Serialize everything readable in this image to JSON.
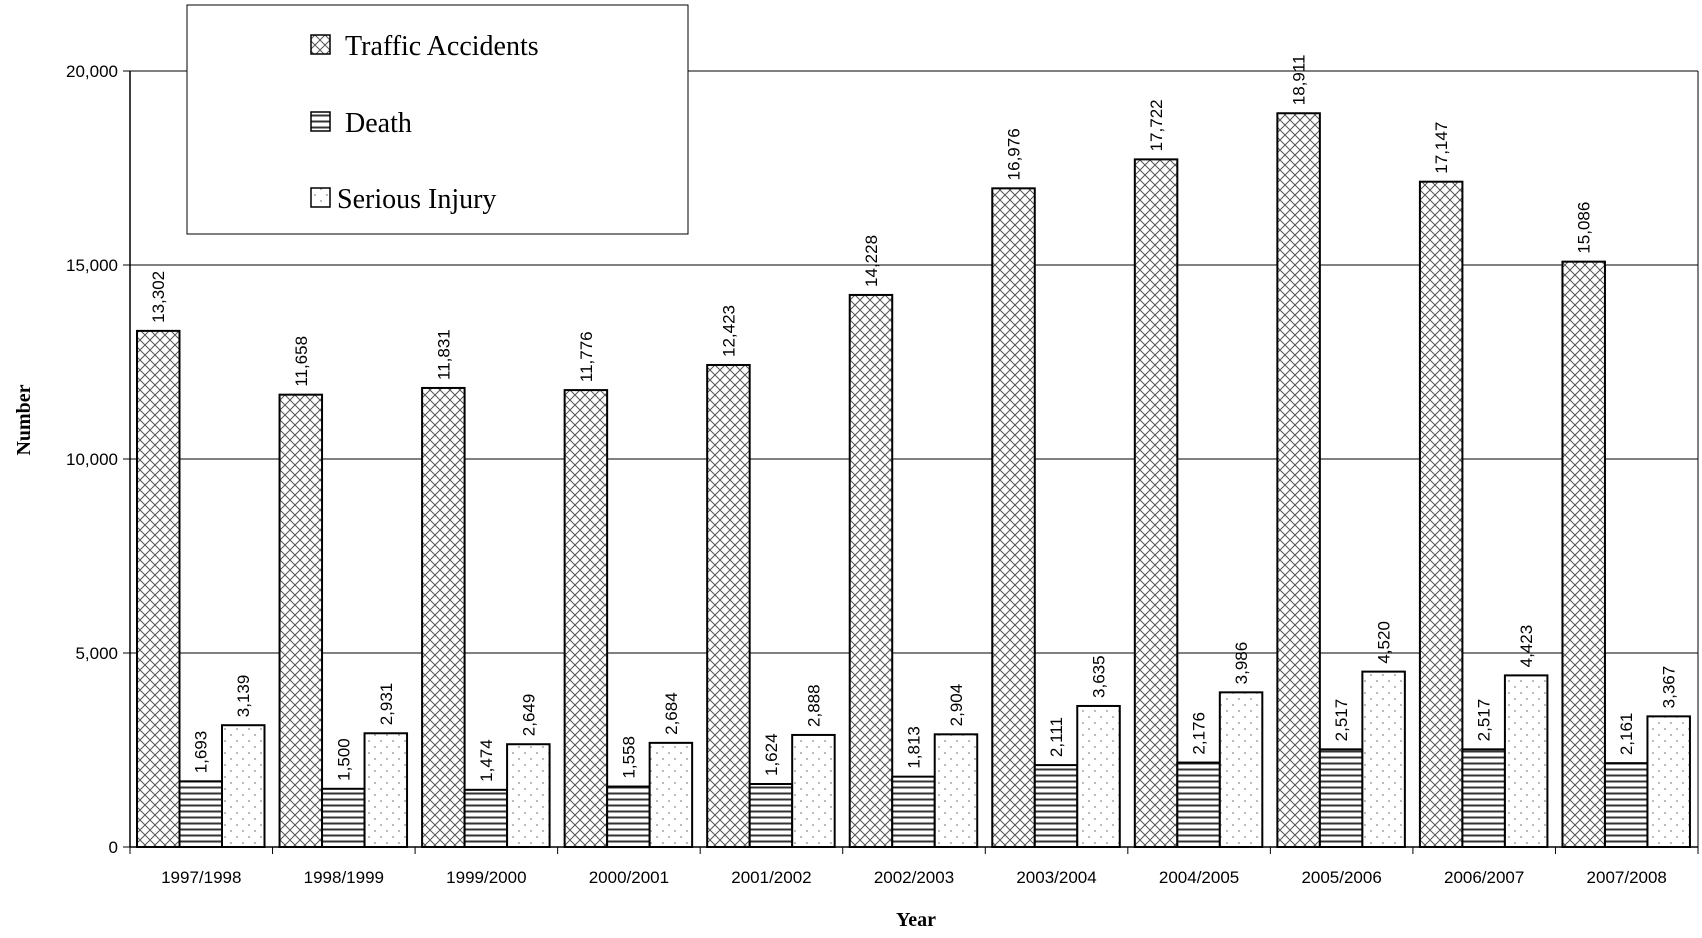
{
  "chart_data": {
    "type": "bar",
    "xlabel": "Year",
    "ylabel": "Number",
    "ylim": [
      0,
      20000
    ],
    "yticks": [
      0,
      5000,
      10000,
      15000,
      20000
    ],
    "ytick_labels": [
      "0",
      "5,000",
      "10,000",
      "15,000",
      "20,000"
    ],
    "grid": true,
    "legend_position": "top-left",
    "categories": [
      "1997/1998",
      "1998/1999",
      "1999/2000",
      "2000/2001",
      "2001/2002",
      "2002/2003",
      "2003/2004",
      "2004/2005",
      "2005/2006",
      "2006/2007",
      "2007/2008"
    ],
    "series": [
      {
        "name": "Traffic Accidents",
        "pattern": "crosshatch",
        "values": [
          13302,
          11658,
          11831,
          11776,
          12423,
          14228,
          16976,
          17722,
          18911,
          17147,
          15086
        ],
        "labels": [
          "13,302",
          "11,658",
          "11,831",
          "11,776",
          "12,423",
          "14,228",
          "16,976",
          "17,722",
          "18,911",
          "17,147",
          "15,086"
        ]
      },
      {
        "name": "Death",
        "pattern": "horizontal-lines",
        "values": [
          1693,
          1500,
          1474,
          1558,
          1624,
          1813,
          2111,
          2176,
          2517,
          2517,
          2161
        ],
        "labels": [
          "1,693",
          "1,500",
          "1,474",
          "1,558",
          "1,624",
          "1,813",
          "2,111",
          "2,176",
          "2,517",
          "2,517",
          "2,161"
        ]
      },
      {
        "name": "Serious Injury",
        "pattern": "dots",
        "values": [
          3139,
          2931,
          2649,
          2684,
          2888,
          2904,
          3635,
          3986,
          4520,
          4423,
          3367
        ],
        "labels": [
          "3,139",
          "2,931",
          "2,649",
          "2,684",
          "2,888",
          "2,904",
          "3,635",
          "3,986",
          "4,520",
          "4,423",
          "3,367"
        ]
      }
    ],
    "colors": {
      "bar_stroke": "#000000",
      "grid": "#000000",
      "background": "#ffffff"
    }
  }
}
